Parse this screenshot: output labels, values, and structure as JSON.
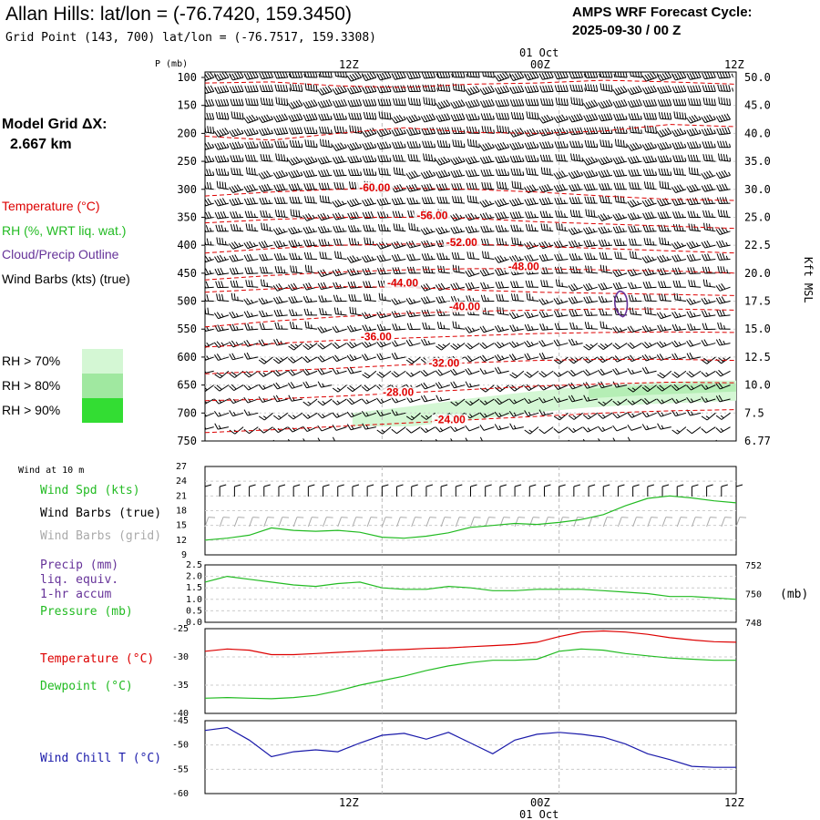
{
  "header": {
    "title": "Allan Hills:  lat/lon = (-76.7420, 159.3450)",
    "grid_point": "Grid Point (143, 700) lat/lon = (-76.7517, 159.3308)",
    "cycle_line1": "AMPS WRF Forecast Cycle:",
    "cycle_line2": "2025-09-30 / 00  Z"
  },
  "model": {
    "label": "Model Grid ΔX:",
    "value": "2.667 km"
  },
  "legend": {
    "temperature": "Temperature (°C)",
    "rh": "RH (%, WRT liq. wat.)",
    "cloud": "Cloud/Precip Outline",
    "wind": "Wind Barbs (kts) (true)",
    "rh70": "RH > 70%",
    "rh80": "RH > 80%",
    "rh90": "RH > 90%",
    "colors": {
      "rh70": "#d4f7d4",
      "rh80": "#a0e8a0",
      "rh90": "#33dd33"
    }
  },
  "time_axis": {
    "top_labels": [
      "12Z",
      "00Z",
      "12Z"
    ],
    "date_label": "01 Oct",
    "bottom_labels": [
      "12Z",
      "00Z",
      "12Z"
    ]
  },
  "colors": {
    "temperature": "#dd0000",
    "dewpoint": "#22bb22",
    "wind_speed": "#22bb22",
    "pressure": "#22bb22",
    "precip": "#663399",
    "wind_chill": "#1a1aaa",
    "grid_barb": "#aaaaaa",
    "cloud_outline": "#663399"
  },
  "chart_data": [
    {
      "type": "contour",
      "name": "upper-air-cross-section",
      "ylabel": "P (mb)",
      "right_label": "Kft MSL",
      "y_ticks": [
        100,
        150,
        200,
        250,
        300,
        350,
        400,
        450,
        500,
        550,
        600,
        650,
        700,
        750
      ],
      "right_ticks": [
        "50.0",
        "45.0",
        "40.0",
        "35.0",
        "30.0",
        "25.0",
        "22.5",
        "20.0",
        "17.5",
        "15.0",
        "12.5",
        "10.0",
        "7.5",
        "6.77"
      ],
      "ylim": [
        750,
        80
      ],
      "xlim_hours": [
        0,
        36
      ],
      "isotherm_labels": [
        {
          "text": "-60.00",
          "t": 11.5,
          "p": 302
        },
        {
          "text": "-56.00",
          "t": 15.4,
          "p": 352
        },
        {
          "text": "-52.00",
          "t": 17.4,
          "p": 400
        },
        {
          "text": "-48.00",
          "t": 21.6,
          "p": 443
        },
        {
          "text": "-44.00",
          "t": 13.4,
          "p": 472
        },
        {
          "text": "-40.00",
          "t": 17.6,
          "p": 515
        },
        {
          "text": "-36.00",
          "t": 11.6,
          "p": 568
        },
        {
          "text": "-32.00",
          "t": 16.2,
          "p": 616
        },
        {
          "text": "-28.00",
          "t": 13.1,
          "p": 668
        },
        {
          "text": "-24.00",
          "t": 16.6,
          "p": 717
        }
      ],
      "isotherm_curves": [
        {
          "p": [
            110,
            108,
            115,
            118,
            112,
            110,
            105,
            108,
            112
          ]
        },
        {
          "p": [
            205,
            212,
            200,
            190,
            198,
            200,
            196,
            184,
            188
          ]
        },
        {
          "p": [
            312,
            305,
            300,
            298,
            300,
            305,
            312,
            318,
            320
          ]
        },
        {
          "p": [
            360,
            354,
            350,
            350,
            352,
            358,
            362,
            366,
            370
          ]
        },
        {
          "p": [
            414,
            406,
            400,
            398,
            398,
            402,
            406,
            410,
            414
          ]
        },
        {
          "p": [
            462,
            454,
            448,
            444,
            442,
            442,
            444,
            446,
            450
          ]
        },
        {
          "p": [
            484,
            478,
            474,
            475,
            480,
            484,
            486,
            488,
            490
          ]
        },
        {
          "p": [
            546,
            536,
            528,
            522,
            518,
            516,
            514,
            514,
            516
          ]
        },
        {
          "p": [
            582,
            576,
            570,
            566,
            562,
            558,
            556,
            555,
            556
          ]
        },
        {
          "p": [
            630,
            625,
            620,
            614,
            610,
            606,
            604,
            604,
            606
          ]
        },
        {
          "p": [
            678,
            675,
            670,
            664,
            658,
            652,
            648,
            645,
            646
          ]
        },
        {
          "p": [
            735,
            730,
            724,
            718,
            712,
            706,
            700,
            696,
            694
          ]
        }
      ],
      "rh_region": {
        "t": [
          10,
          14,
          18,
          22,
          26,
          30,
          34,
          36
        ],
        "p_top": [
          700,
          688,
          674,
          662,
          652,
          646,
          642,
          642
        ],
        "p_bottom": [
          724,
          724,
          712,
          700,
          690,
          684,
          680,
          678
        ]
      },
      "cloud_outline": {
        "t": 28.2,
        "p": 505
      },
      "wind_levels_mb": [
        100,
        125,
        150,
        175,
        200,
        225,
        250,
        275,
        300,
        325,
        350,
        375,
        400,
        425,
        450,
        475,
        500,
        525,
        550,
        575,
        600,
        625,
        650,
        675,
        700,
        725,
        750
      ]
    },
    {
      "type": "line",
      "name": "wind-10m",
      "title": "Wind at 10 m",
      "series_label": "Wind Spd (kts)",
      "barb_true_label": "Wind Barbs (true)",
      "barb_grid_label": "Wind Barbs (grid)",
      "y_ticks": [
        9,
        12,
        15,
        18,
        21,
        24,
        27
      ],
      "ylim": [
        9,
        27
      ],
      "x_hours": [
        0,
        1.5,
        3,
        4.5,
        6,
        7.5,
        9,
        10.5,
        12,
        13.5,
        15,
        16.5,
        18,
        19.5,
        21,
        22.5,
        24,
        25.5,
        27,
        28.5,
        30,
        31.5,
        33,
        34.5,
        36
      ],
      "values": [
        12,
        12.4,
        13,
        14.5,
        14,
        13.8,
        14,
        13.6,
        12.6,
        12.4,
        12.8,
        13.5,
        14.6,
        15,
        15.4,
        15.2,
        15.6,
        16.2,
        17.2,
        19,
        20.5,
        21,
        20.6,
        20,
        19.6
      ]
    },
    {
      "type": "line",
      "name": "precip-pressure",
      "precip_label": "Precip (mm)",
      "precip_label2": "liq. equiv.",
      "precip_label3": "1-hr accum",
      "pressure_label": "Pressure (mb)",
      "left_ticks": [
        "0.0",
        "0.5",
        "1.0",
        "1.5",
        "2.0",
        "2.5"
      ],
      "right_ticks": [
        "748",
        "750",
        "752"
      ],
      "right_unit": "(mb)",
      "ylim_pressure": [
        748,
        752
      ],
      "x_hours": [
        0,
        1.5,
        3,
        4.5,
        6,
        7.5,
        9,
        10.5,
        12,
        13.5,
        15,
        16.5,
        18,
        19.5,
        21,
        22.5,
        24,
        25.5,
        27,
        28.5,
        30,
        31.5,
        33,
        34.5,
        36
      ],
      "pressure_values": [
        750.8,
        751.2,
        751.0,
        750.8,
        750.6,
        750.5,
        750.7,
        750.8,
        750.4,
        750.3,
        750.3,
        750.5,
        750.4,
        750.2,
        750.2,
        750.3,
        750.3,
        750.3,
        750.2,
        750.1,
        750.0,
        749.8,
        749.8,
        749.7,
        749.6
      ],
      "precip_values": []
    },
    {
      "type": "line",
      "name": "temperature-dewpoint",
      "temp_label": "Temperature (°C)",
      "dew_label": "Dewpoint (°C)",
      "y_ticks": [
        -40,
        -35,
        -30,
        -25
      ],
      "ylim": [
        -40,
        -25
      ],
      "x_hours": [
        0,
        1.5,
        3,
        4.5,
        6,
        7.5,
        9,
        10.5,
        12,
        13.5,
        15,
        16.5,
        18,
        19.5,
        21,
        22.5,
        24,
        25.5,
        27,
        28.5,
        30,
        31.5,
        33,
        34.5,
        36
      ],
      "temperature": [
        -29.0,
        -28.6,
        -28.8,
        -29.6,
        -29.6,
        -29.4,
        -29.2,
        -29.0,
        -28.8,
        -28.7,
        -28.5,
        -28.4,
        -28.2,
        -28.0,
        -27.8,
        -27.4,
        -26.4,
        -25.6,
        -25.4,
        -25.6,
        -26.0,
        -26.6,
        -27.0,
        -27.3,
        -27.4
      ],
      "dewpoint": [
        -37.3,
        -37.2,
        -37.3,
        -37.4,
        -37.2,
        -36.8,
        -36.0,
        -35.0,
        -34.2,
        -33.4,
        -32.4,
        -31.6,
        -31.0,
        -30.6,
        -30.6,
        -30.4,
        -29.0,
        -28.6,
        -28.8,
        -29.4,
        -29.8,
        -30.2,
        -30.4,
        -30.6,
        -30.6
      ]
    },
    {
      "type": "line",
      "name": "wind-chill",
      "series_label": "Wind Chill T (°C)",
      "y_ticks": [
        -60,
        -55,
        -50,
        -45
      ],
      "ylim": [
        -60,
        -45
      ],
      "x_hours": [
        0,
        1.5,
        3,
        4.5,
        6,
        7.5,
        9,
        10.5,
        12,
        13.5,
        15,
        16.5,
        18,
        19.5,
        21,
        22.5,
        24,
        25.5,
        27,
        28.5,
        30,
        31.5,
        33,
        34.5,
        36
      ],
      "values": [
        -47.0,
        -46.4,
        -49.0,
        -52.4,
        -51.4,
        -51.0,
        -51.4,
        -49.6,
        -48.0,
        -47.6,
        -48.8,
        -47.4,
        -49.6,
        -51.8,
        -49.0,
        -47.8,
        -47.4,
        -47.8,
        -48.4,
        -49.8,
        -51.8,
        -53.0,
        -54.4,
        -54.6,
        -54.6
      ]
    }
  ]
}
